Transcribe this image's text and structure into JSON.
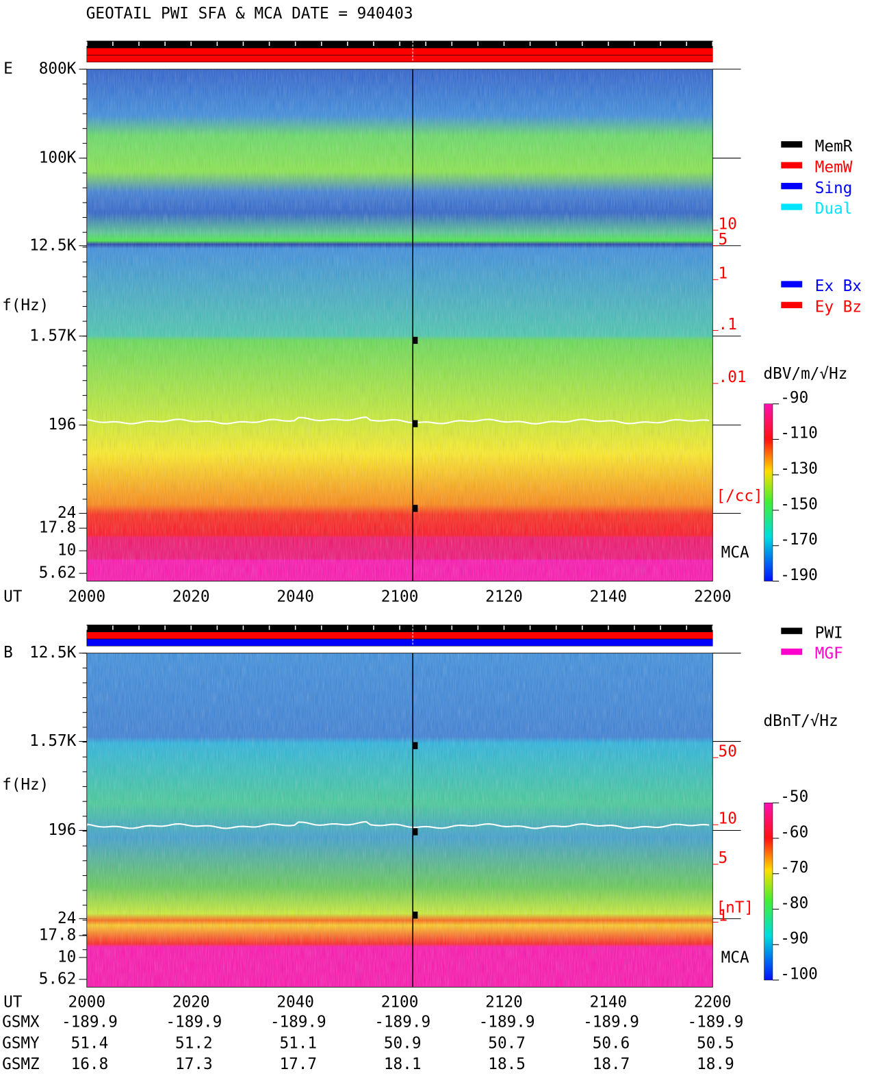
{
  "title": "GEOTAIL  PWI SFA & MCA   DATE = 940403",
  "panels": [
    {
      "label": "E",
      "y_label": "f(Hz)",
      "freq_ticks": [
        "800K",
        "100K",
        "12.5K",
        "1.57K",
        "196",
        "24",
        "17.8",
        "10",
        "5.62"
      ],
      "x_label": "UT",
      "x_ticks": [
        "2000",
        "2020",
        "2040",
        "2100",
        "2120",
        "2140",
        "2200"
      ],
      "mode_legend": [
        {
          "name": "MemR",
          "color": "#000000"
        },
        {
          "name": "MemW",
          "color": "#ff0000"
        },
        {
          "name": "Sing",
          "color": "#0000ff"
        },
        {
          "name": "Dual",
          "color": "#00e5ff"
        }
      ],
      "sensor_legend": [
        {
          "name": "Ex Bx",
          "color": "#0000ff"
        },
        {
          "name": "Ey Bz",
          "color": "#ff0000"
        }
      ],
      "density_ticks": [
        "10",
        "5",
        "1",
        ".1",
        ".01"
      ],
      "density_unit": "[/cc]",
      "mca_label": "MCA",
      "colorbar_unit": "dBV/m/√Hz",
      "colorbar_ticks": [
        -90,
        -110,
        -130,
        -150,
        -170,
        -190
      ],
      "colorbar_lim": [
        -190,
        -90
      ]
    },
    {
      "label": "B",
      "y_label": "f(Hz)",
      "freq_ticks": [
        "12.5K",
        "1.57K",
        "196",
        "24",
        "17.8",
        "10",
        "5.62"
      ],
      "x_label": "UT",
      "x_ticks": [
        "2000",
        "2020",
        "2040",
        "2100",
        "2120",
        "2140",
        "2200"
      ],
      "mode_legend": [
        {
          "name": "PWI",
          "color": "#000000"
        },
        {
          "name": "MGF",
          "color": "#ff00cc"
        }
      ],
      "density_ticks": [
        "50",
        "10",
        "5",
        "1"
      ],
      "density_unit": "[nT]",
      "mca_label": "MCA",
      "colorbar_unit": "dBnT/√Hz",
      "colorbar_ticks": [
        -50,
        -60,
        -70,
        -80,
        -90,
        -100
      ],
      "colorbar_lim": [
        -100,
        -50
      ]
    }
  ],
  "orbit": {
    "rows": [
      {
        "label": "GSMX",
        "values": [
          -189.9,
          -189.9,
          -189.9,
          -189.9,
          -189.9,
          -189.9,
          -189.9
        ]
      },
      {
        "label": "GSMY",
        "values": [
          51.4,
          51.2,
          51.1,
          50.9,
          50.7,
          50.6,
          50.5
        ]
      },
      {
        "label": "GSMZ",
        "values": [
          16.8,
          17.3,
          17.7,
          18.1,
          18.5,
          18.7,
          18.9
        ]
      }
    ]
  }
}
